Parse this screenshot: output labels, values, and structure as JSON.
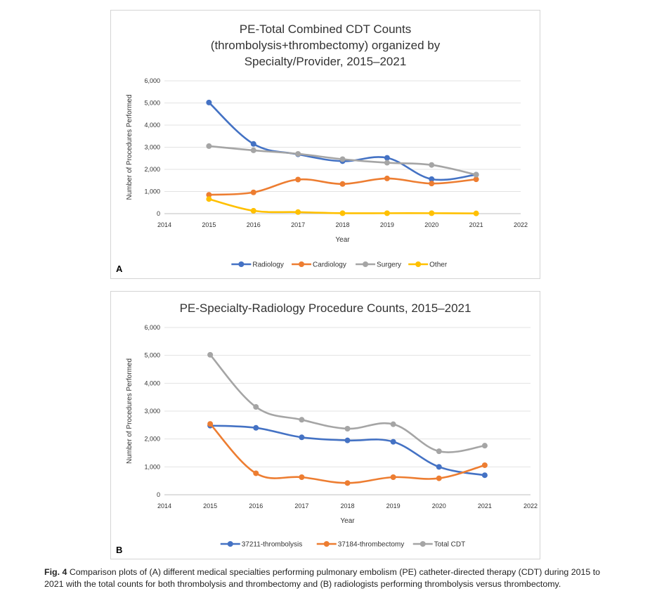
{
  "chart_data": [
    {
      "panel": "A",
      "type": "line",
      "title_lines": [
        "PE-Total Combined CDT Counts",
        "(thrombolysis+thrombectomy) organized by",
        "Specialty/Provider, 2015–2021"
      ],
      "xlabel": "Year",
      "ylabel": "Number of Procedures Performed",
      "xlim": [
        2014,
        2022
      ],
      "ylim": [
        0,
        6000
      ],
      "x_ticks": [
        2014,
        2015,
        2016,
        2017,
        2018,
        2019,
        2020,
        2021,
        2022
      ],
      "y_ticks": [
        0,
        1000,
        2000,
        3000,
        4000,
        5000,
        6000
      ],
      "y_tick_labels": [
        "0",
        "1,000",
        "2,000",
        "3,000",
        "4,000",
        "5,000",
        "6,000"
      ],
      "grid": "horizontal",
      "legend_position": "bottom",
      "x": [
        2015,
        2016,
        2017,
        2018,
        2019,
        2020,
        2021
      ],
      "series": [
        {
          "name": "Radiology",
          "color": "#4472C4",
          "values": [
            5020,
            3150,
            2680,
            2370,
            2520,
            1560,
            1760
          ]
        },
        {
          "name": "Cardiology",
          "color": "#ED7D31",
          "values": [
            850,
            960,
            1540,
            1340,
            1590,
            1360,
            1550
          ]
        },
        {
          "name": "Surgery",
          "color": "#A5A5A5",
          "values": [
            3050,
            2860,
            2700,
            2460,
            2300,
            2200,
            1760
          ]
        },
        {
          "name": "Other",
          "color": "#FFC000",
          "values": [
            660,
            130,
            70,
            20,
            20,
            20,
            10
          ]
        }
      ]
    },
    {
      "panel": "B",
      "type": "line",
      "title_lines": [
        "PE-Specialty-Radiology Procedure Counts, 2015–2021"
      ],
      "xlabel": "Year",
      "ylabel": "Number of Procedures Performed",
      "xlim": [
        2014,
        2022
      ],
      "ylim": [
        0,
        6000
      ],
      "x_ticks": [
        2014,
        2015,
        2016,
        2017,
        2018,
        2019,
        2020,
        2021,
        2022
      ],
      "y_ticks": [
        0,
        1000,
        2000,
        3000,
        4000,
        5000,
        6000
      ],
      "y_tick_labels": [
        "0",
        "1,000",
        "2,000",
        "3,000",
        "4,000",
        "5,000",
        "6,000"
      ],
      "grid": "horizontal",
      "legend_position": "bottom",
      "x": [
        2015,
        2016,
        2017,
        2018,
        2019,
        2020,
        2021
      ],
      "series": [
        {
          "name": "37211-thrombolysis",
          "color": "#4472C4",
          "values": [
            2480,
            2400,
            2060,
            1950,
            1900,
            1000,
            700
          ]
        },
        {
          "name": "37184-thrombectomy",
          "color": "#ED7D31",
          "values": [
            2540,
            770,
            630,
            420,
            630,
            590,
            1060
          ]
        },
        {
          "name": "Total CDT",
          "color": "#A5A5A5",
          "values": [
            5020,
            3150,
            2690,
            2370,
            2530,
            1560,
            1760
          ]
        }
      ]
    }
  ],
  "caption": {
    "fig_label": "Fig. 4",
    "text": "Comparison plots of (A) different medical specialties performing pulmonary embolism (PE) catheter-directed therapy (CDT) during 2015 to 2021 with the total counts for both thrombolysis and thrombectomy and (B) radiologists performing thrombolysis versus thrombectomy."
  }
}
